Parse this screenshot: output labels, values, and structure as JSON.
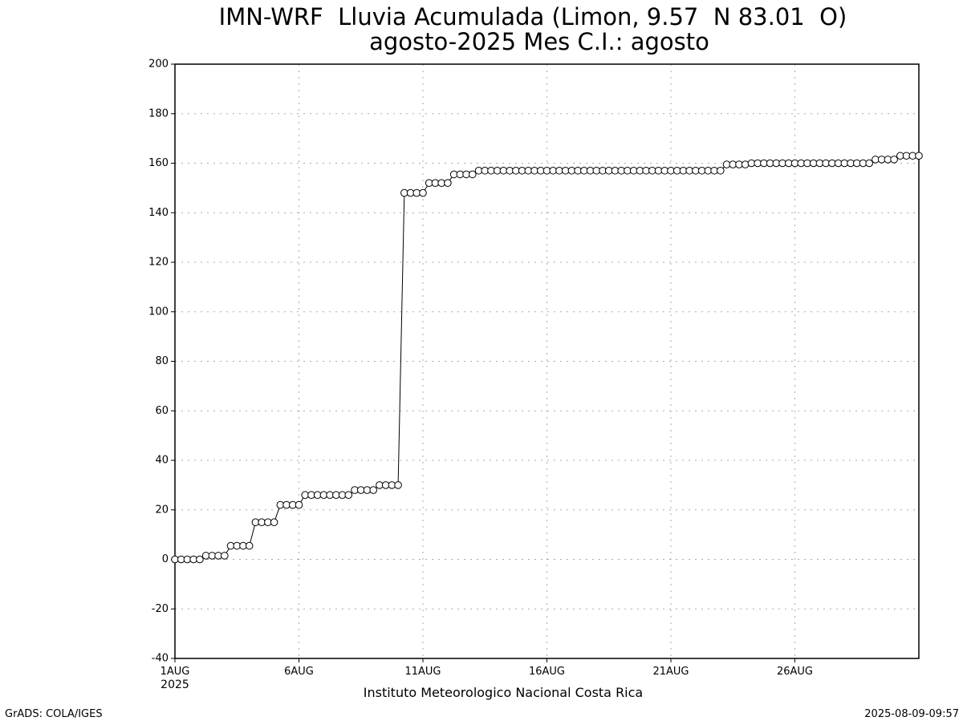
{
  "chart_data": {
    "type": "line",
    "title": "IMN-WRF  Lluvia Acumulada (Limon, 9.57  N 83.01  O)",
    "subtitle": "agosto-2025 Mes C.I.: agosto",
    "x_label": "Instituto Meteorologico Nacional Costa Rica",
    "x_year": "2025",
    "footer_left": "GrADS: COLA/IGES",
    "footer_right": "2025-08-09-09:57",
    "categories": [
      "1AUG",
      null,
      null,
      null,
      null,
      null,
      null,
      null,
      null,
      null,
      null,
      null,
      null,
      null,
      null,
      null,
      null,
      null,
      null,
      null,
      "6AUG",
      null,
      null,
      null,
      null,
      null,
      null,
      null,
      null,
      null,
      null,
      null,
      null,
      null,
      null,
      null,
      null,
      null,
      null,
      null,
      "11AUG",
      null,
      null,
      null,
      null,
      null,
      null,
      null,
      null,
      null,
      null,
      null,
      null,
      null,
      null,
      null,
      null,
      null,
      null,
      null,
      "16AUG",
      null,
      null,
      null,
      null,
      null,
      null,
      null,
      null,
      null,
      null,
      null,
      null,
      null,
      null,
      null,
      null,
      null,
      null,
      null,
      "21AUG",
      null,
      null,
      null,
      null,
      null,
      null,
      null,
      null,
      null,
      null,
      null,
      null,
      null,
      null,
      null,
      null,
      null,
      null,
      null,
      "26AUG",
      null,
      null,
      null,
      null,
      null,
      null,
      null,
      null,
      null,
      null,
      null,
      null,
      null,
      null,
      null,
      null,
      null,
      null,
      null,
      null
    ],
    "values": [
      0,
      0,
      0,
      0,
      0,
      1.5,
      1.5,
      1.5,
      1.5,
      5.5,
      5.5,
      5.5,
      5.5,
      15,
      15,
      15,
      15,
      22,
      22,
      22,
      22,
      26,
      26,
      26,
      26,
      26,
      26,
      26,
      26,
      28,
      28,
      28,
      28,
      30,
      30,
      30,
      30,
      148,
      148,
      148,
      148,
      152,
      152,
      152,
      152,
      155.5,
      155.5,
      155.5,
      155.5,
      157,
      157,
      157,
      157,
      157,
      157,
      157,
      157,
      157,
      157,
      157,
      157,
      157,
      157,
      157,
      157,
      157,
      157,
      157,
      157,
      157,
      157,
      157,
      157,
      157,
      157,
      157,
      157,
      157,
      157,
      157,
      157,
      157,
      157,
      157,
      157,
      157,
      157,
      157,
      157,
      159.5,
      159.5,
      159.5,
      159.5,
      160,
      160,
      160,
      160,
      160,
      160,
      160,
      160,
      160,
      160,
      160,
      160,
      160,
      160,
      160,
      160,
      160,
      160,
      160,
      160,
      161.5,
      161.5,
      161.5,
      161.5,
      163,
      163,
      163,
      163
    ],
    "color": "#000000",
    "ylim": [
      -40,
      200
    ],
    "yticks": [
      -40,
      -20,
      0,
      20,
      40,
      60,
      80,
      100,
      120,
      140,
      160,
      180,
      200
    ],
    "grid": true
  }
}
